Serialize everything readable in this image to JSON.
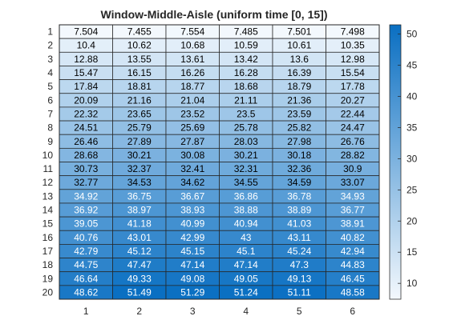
{
  "chart_data": {
    "type": "heatmap",
    "title": "Window-Middle-Aisle (uniform time [0, 15])",
    "xlabel": "",
    "ylabel": "",
    "x_categories": [
      "1",
      "2",
      "3",
      "4",
      "5",
      "6"
    ],
    "y_categories": [
      "1",
      "2",
      "3",
      "4",
      "5",
      "6",
      "7",
      "8",
      "9",
      "10",
      "11",
      "12",
      "13",
      "14",
      "15",
      "16",
      "17",
      "18",
      "19",
      "20"
    ],
    "cell_labels": [
      [
        "7.504",
        "7.455",
        "7.554",
        "7.485",
        "7.501",
        "7.498"
      ],
      [
        "10.4",
        "10.62",
        "10.68",
        "10.59",
        "10.61",
        "10.35"
      ],
      [
        "12.88",
        "13.55",
        "13.61",
        "13.42",
        "13.6",
        "12.98"
      ],
      [
        "15.47",
        "16.15",
        "16.26",
        "16.28",
        "16.39",
        "15.54"
      ],
      [
        "17.84",
        "18.81",
        "18.77",
        "18.68",
        "18.79",
        "17.78"
      ],
      [
        "20.09",
        "21.16",
        "21.04",
        "21.11",
        "21.36",
        "20.27"
      ],
      [
        "22.32",
        "23.65",
        "23.52",
        "23.5",
        "23.59",
        "22.44"
      ],
      [
        "24.51",
        "25.79",
        "25.69",
        "25.78",
        "25.82",
        "24.47"
      ],
      [
        "26.46",
        "27.89",
        "27.87",
        "28.03",
        "27.98",
        "26.76"
      ],
      [
        "28.68",
        "30.21",
        "30.08",
        "30.21",
        "30.18",
        "28.82"
      ],
      [
        "30.73",
        "32.37",
        "32.41",
        "32.31",
        "32.36",
        "30.9"
      ],
      [
        "32.77",
        "34.53",
        "34.62",
        "34.55",
        "34.59",
        "33.07"
      ],
      [
        "34.92",
        "36.75",
        "36.67",
        "36.86",
        "36.78",
        "34.93"
      ],
      [
        "36.92",
        "38.97",
        "38.93",
        "38.88",
        "38.89",
        "36.77"
      ],
      [
        "39.05",
        "41.18",
        "40.99",
        "40.94",
        "41.03",
        "38.91"
      ],
      [
        "40.76",
        "43.01",
        "42.99",
        "43",
        "43.11",
        "40.82"
      ],
      [
        "42.79",
        "45.12",
        "45.15",
        "45.1",
        "45.24",
        "42.94"
      ],
      [
        "44.75",
        "47.47",
        "47.14",
        "47.14",
        "47.3",
        "44.83"
      ],
      [
        "46.64",
        "49.33",
        "49.08",
        "49.05",
        "49.13",
        "46.45"
      ],
      [
        "48.62",
        "51.49",
        "51.29",
        "51.24",
        "51.11",
        "48.58"
      ]
    ],
    "colorbar": {
      "min": 7.455,
      "max": 51.49,
      "ticks": [
        "10",
        "15",
        "20",
        "25",
        "30",
        "35",
        "40",
        "45",
        "50"
      ],
      "color_low": "#f3f8fd",
      "color_high": "#0a6fc2"
    },
    "grid": true,
    "legend": "none"
  }
}
